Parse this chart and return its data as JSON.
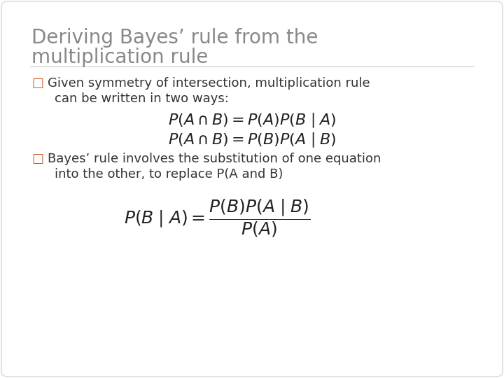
{
  "title_line1": "Deriving Bayes’ rule from the",
  "title_line2": "multiplication rule",
  "title_color": "#888888",
  "title_fontsize": 20,
  "body_fontsize": 13,
  "formula_fontsize": 16,
  "bg_color": "#ffffff",
  "bullet_color": "#cc5522",
  "bullet1_line1": "Given symmetry of intersection, multiplication rule",
  "bullet1_line2": "can be written in two ways:",
  "formula1": "$P(A \\cap B) = P(A)P(B\\mid A)$",
  "formula2": "$P(A \\cap B) = P(B)P(A\\mid B)$",
  "bullet2_line1": "Bayes’ rule involves the substitution of one equation",
  "bullet2_line2": "into the other, to replace P(A and B)",
  "formula3": "$P(B\\mid A) = \\dfrac{P(B)P(A\\mid B)}{P(A)}$"
}
